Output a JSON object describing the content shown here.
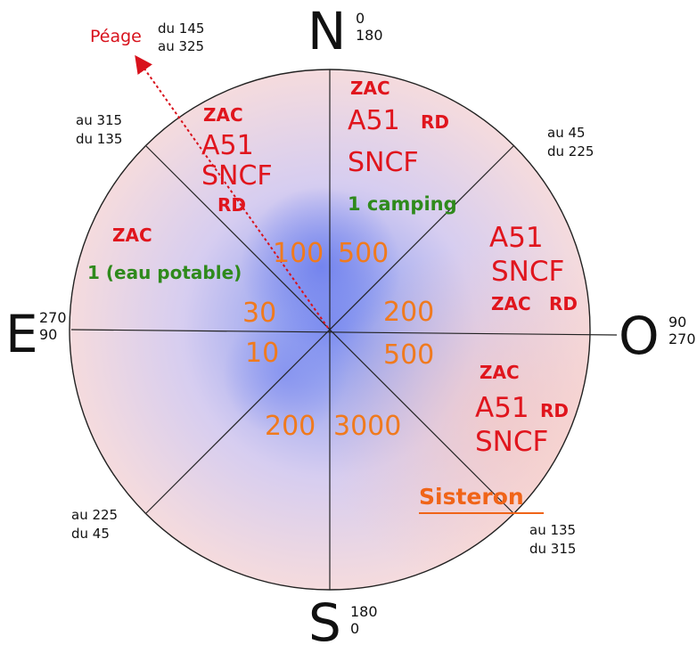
{
  "cardinals": {
    "north": {
      "letter": "N",
      "deg1": "0",
      "deg2": "180"
    },
    "south": {
      "letter": "S",
      "deg1": "180",
      "deg2": "0"
    },
    "east": {
      "letter": "E",
      "deg1": "270",
      "deg2": "90"
    },
    "west": {
      "letter": "O",
      "deg1": "90",
      "deg2": "270"
    }
  },
  "ranges": {
    "nw": {
      "line1": "au 315",
      "line2": "du 135"
    },
    "ne": {
      "line1": "au 45",
      "line2": "du 225"
    },
    "sw": {
      "line1": "au 225",
      "line2": "du 45"
    },
    "se": {
      "line1": "au 135",
      "line2": "du 315"
    },
    "toll": {
      "label": "Péage",
      "line1": "du 145",
      "line2": "au 325"
    }
  },
  "sectors": {
    "s1": {
      "zac": "ZAC",
      "a51": "A51",
      "rd": "RD",
      "sncf": "SNCF",
      "note": "1 camping",
      "distance": "500"
    },
    "s2": {
      "a51": "A51",
      "sncf": "SNCF",
      "zac": "ZAC",
      "rd": "RD",
      "distance": "200"
    },
    "s3": {
      "zac": "ZAC",
      "a51": "A51",
      "rd": "RD",
      "sncf": "SNCF",
      "distance": "500",
      "town": "Sisteron"
    },
    "s4": {
      "distance": "3000"
    },
    "s5": {
      "distance": "200"
    },
    "s6": {
      "distance": "10"
    },
    "s7": {
      "zac": "ZAC",
      "note": "1 (eau potable)",
      "distance": "30"
    },
    "s8": {
      "zac": "ZAC",
      "a51": "A51",
      "sncf": "SNCF",
      "rd": "RD",
      "distance": "100"
    }
  },
  "colors": {
    "infra": "#e0151d",
    "note": "#2f8a1c",
    "distance": "#f07a1e",
    "town": "#f06418",
    "toll": "#d8121c"
  }
}
